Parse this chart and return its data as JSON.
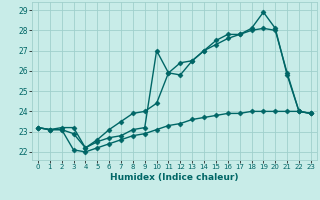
{
  "xlabel": "Humidex (Indice chaleur)",
  "ylabel": "",
  "background_color": "#c8ece8",
  "grid_color": "#a0d0cc",
  "line_color": "#006666",
  "xlim": [
    -0.5,
    23.5
  ],
  "ylim": [
    21.6,
    29.4
  ],
  "yticks": [
    22,
    23,
    24,
    25,
    26,
    27,
    28,
    29
  ],
  "xticks": [
    0,
    1,
    2,
    3,
    4,
    5,
    6,
    7,
    8,
    9,
    10,
    11,
    12,
    13,
    14,
    15,
    16,
    17,
    18,
    19,
    20,
    21,
    22,
    23
  ],
  "series": [
    {
      "x": [
        0,
        1,
        2,
        3,
        4,
        5,
        6,
        7,
        8,
        9,
        10,
        11,
        12,
        13,
        14,
        15,
        16,
        17,
        18,
        19,
        20,
        21,
        22,
        23
      ],
      "y": [
        23.2,
        23.1,
        23.1,
        22.9,
        22.2,
        22.5,
        22.7,
        22.8,
        23.1,
        23.2,
        27.0,
        25.9,
        25.8,
        26.5,
        27.0,
        27.5,
        27.8,
        27.8,
        28.1,
        28.9,
        28.1,
        25.8,
        24.0,
        23.9
      ],
      "marker": "D",
      "markersize": 2.5,
      "linewidth": 1.0
    },
    {
      "x": [
        0,
        1,
        2,
        3,
        4,
        5,
        6,
        7,
        8,
        9,
        10,
        11,
        12,
        13,
        14,
        15,
        16,
        17,
        18,
        19,
        20,
        21,
        22,
        23
      ],
      "y": [
        23.2,
        23.1,
        23.2,
        23.2,
        22.2,
        22.6,
        23.1,
        23.5,
        23.9,
        24.0,
        24.4,
        25.9,
        26.4,
        26.5,
        27.0,
        27.3,
        27.6,
        27.8,
        28.0,
        28.1,
        28.0,
        25.9,
        24.0,
        23.9
      ],
      "marker": "D",
      "markersize": 2.5,
      "linewidth": 1.0
    },
    {
      "x": [
        0,
        1,
        2,
        3,
        4,
        5,
        6,
        7,
        8,
        9,
        10,
        11,
        12,
        13,
        14,
        15,
        16,
        17,
        18,
        19,
        20,
        21,
        22,
        23
      ],
      "y": [
        23.2,
        23.1,
        23.1,
        22.1,
        22.0,
        22.2,
        22.4,
        22.6,
        22.8,
        22.9,
        23.1,
        23.3,
        23.4,
        23.6,
        23.7,
        23.8,
        23.9,
        23.9,
        24.0,
        24.0,
        24.0,
        24.0,
        24.0,
        23.9
      ],
      "marker": "D",
      "markersize": 2.5,
      "linewidth": 1.0
    }
  ]
}
